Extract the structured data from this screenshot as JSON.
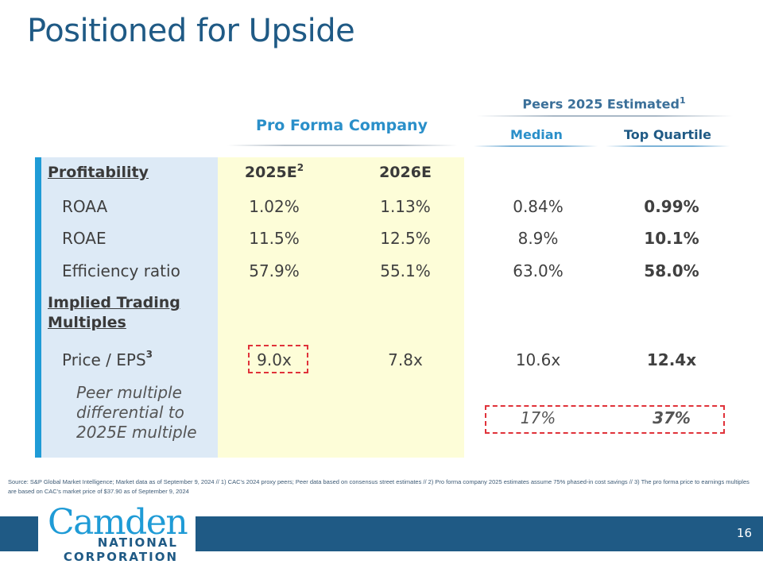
{
  "slide": {
    "title": "Positioned for Upside",
    "page_number": "16"
  },
  "headers": {
    "peers_group": "Peers 2025 Estimated",
    "peers_group_sup": "1",
    "pro_forma": "Pro Forma Company",
    "median": "Median",
    "top_quartile": "Top Quartile"
  },
  "table": {
    "profitability": {
      "label": "Profitability",
      "col1": "2025E",
      "col1_sup": "2",
      "col2": "2026E"
    },
    "rows": [
      {
        "label": "ROAA",
        "pf2025": "1.02%",
        "pf2026": "1.13%",
        "median": "0.84%",
        "top": "0.99%"
      },
      {
        "label": "ROAE",
        "pf2025": "11.5%",
        "pf2026": "12.5%",
        "median": "8.9%",
        "top": "10.1%"
      },
      {
        "label": "Efficiency ratio",
        "pf2025": "57.9%",
        "pf2026": "55.1%",
        "median": "63.0%",
        "top": "58.0%"
      }
    ],
    "multiples_section": {
      "label_line1": "Implied Trading",
      "label_line2": "Multiples"
    },
    "price_eps": {
      "label": "Price / EPS",
      "label_sup": "3",
      "pf2025": "9.0x",
      "pf2026": "7.8x",
      "median": "10.6x",
      "top": "12.4x"
    },
    "differential": {
      "label_line1": "Peer multiple",
      "label_line2": "differential to",
      "label_line3": "2025E multiple",
      "median": "17%",
      "top": "37%"
    }
  },
  "footnote": "Source: S&P Global Market Intelligence; Market data as of September 9, 2024 // 1) CAC's 2024 proxy peers; Peer data based on consensus street estimates // 2)  Pro forma company 2025 estimates assume 75% phased-in cost savings // 3) The pro forma price to earnings multiples are based on CAC's market price of $37.90 as of September 9, 2024",
  "logo": {
    "line1": "Camden",
    "line2": "NATIONAL",
    "line3": "CORPORATION"
  },
  "colors": {
    "title": "#1f5a85",
    "accent": "#1f9bd6",
    "pro_forma_bg": "#fdfdd8",
    "label_bg": "#ddeaf6",
    "highlight": "#e0323a"
  }
}
